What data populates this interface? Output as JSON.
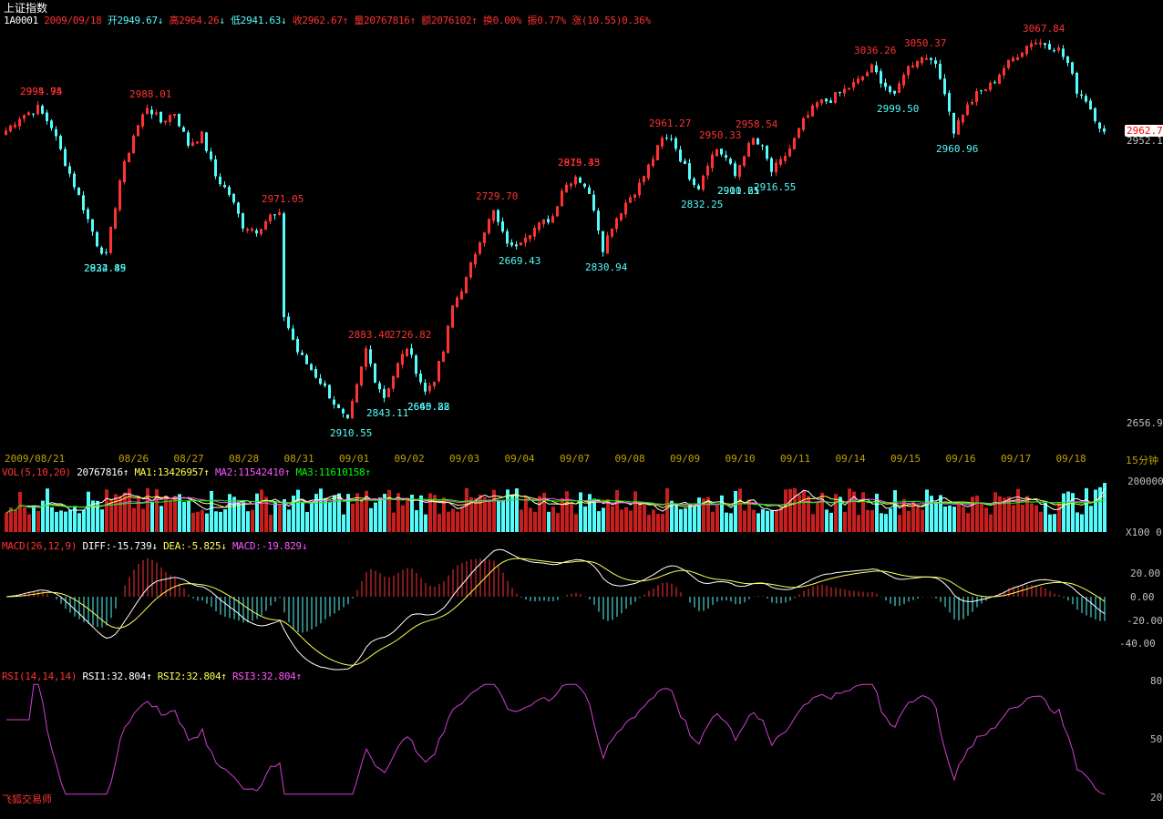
{
  "header": {
    "title": "上证指数",
    "code": "1A0001",
    "date": "2009/09/18",
    "open": "开2949.67",
    "high": "高2964.26",
    "low": "低2941.63",
    "close": "收2962.67",
    "volume": "量20767816",
    "amount": "额2076102",
    "turnover": "换0.00%",
    "amplitude": "振0.77%",
    "change": "涨(10.55)0.36%"
  },
  "price_panel": {
    "axis_top": "2962.7",
    "axis_cur": "2952.1",
    "axis_bottom": "2656.9",
    "peaks": [
      {
        "label": "2994.95"
      },
      {
        "label": "2995.74"
      },
      {
        "label": "2988.01"
      },
      {
        "label": "2971.05"
      },
      {
        "label": "2883.40"
      },
      {
        "label": "2726.82"
      },
      {
        "label": "2729.70"
      },
      {
        "label": "2875.43"
      },
      {
        "label": "2919.35"
      },
      {
        "label": "2961.27"
      },
      {
        "label": "2950.33"
      },
      {
        "label": "2958.54"
      },
      {
        "label": "3036.26"
      },
      {
        "label": "3050.37"
      },
      {
        "label": "3067.84"
      }
    ],
    "troughs": [
      {
        "label": "2824.45"
      },
      {
        "label": "2932.89"
      },
      {
        "label": "2910.55"
      },
      {
        "label": "2843.11"
      },
      {
        "label": "2640.22"
      },
      {
        "label": "2665.88"
      },
      {
        "label": "2669.43"
      },
      {
        "label": "2830.94"
      },
      {
        "label": "2832.25"
      },
      {
        "label": "2900.65"
      },
      {
        "label": "2911.21"
      },
      {
        "label": "2916.55"
      },
      {
        "label": "2999.50"
      },
      {
        "label": "2960.96"
      }
    ]
  },
  "date_axis": {
    "labels": [
      "2009/08/21",
      "08/26",
      "08/27",
      "08/28",
      "08/31",
      "09/01",
      "09/02",
      "09/03",
      "09/04",
      "09/07",
      "09/08",
      "09/09",
      "09/10",
      "09/11",
      "09/14",
      "09/15",
      "09/16",
      "09/17",
      "09/18"
    ],
    "period": "15分钟"
  },
  "vol_panel": {
    "name": "VOL(5,10,20)",
    "value": "20767816↑",
    "ma1": "MA1:13426957↑",
    "ma2": "MA2:11542410↑",
    "ma3": "MA3:11610158↑",
    "axis_top": "200000",
    "axis_bottom": "0",
    "unit": "X100"
  },
  "macd_panel": {
    "name": "MACD(26,12,9)",
    "diff": "DIFF:-15.739↓",
    "dea": "DEA:-5.825↓",
    "macd": "MACD:-19.829↓",
    "axis": [
      "20.00",
      "0.00",
      "-20.00",
      "-40.00"
    ]
  },
  "rsi_panel": {
    "name": "RSI(14,14,14)",
    "rsi1": "RSI1:32.804↑",
    "rsi2": "RSI2:32.804↑",
    "rsi3": "RSI3:32.804↑",
    "axis": [
      "80",
      "50",
      "20"
    ]
  },
  "brand": "飞狐交易师",
  "colors": {
    "up": "#ff3232",
    "down": "#54fcfc",
    "ma_white": "#ffffff",
    "ma_yellow": "#ffff54",
    "ma_magenta": "#ff54ff",
    "ma_green": "#00ff00",
    "rsi_line": "#d040d0"
  },
  "chart_data": {
    "type": "candlestick",
    "interval": "15分钟",
    "price_range": [
      2620,
      3080
    ],
    "close_anchors": [
      [
        0,
        2965
      ],
      [
        3,
        2980
      ],
      [
        7,
        2990
      ],
      [
        10,
        2970
      ],
      [
        13,
        2930
      ],
      [
        17,
        2880
      ],
      [
        20,
        2840
      ],
      [
        22,
        2826
      ],
      [
        25,
        2910
      ],
      [
        28,
        2960
      ],
      [
        31,
        2992
      ],
      [
        34,
        2975
      ],
      [
        37,
        2985
      ],
      [
        40,
        2950
      ],
      [
        43,
        2960
      ],
      [
        46,
        2915
      ],
      [
        49,
        2895
      ],
      [
        52,
        2860
      ],
      [
        55,
        2855
      ],
      [
        58,
        2870
      ],
      [
        60,
        2870
      ],
      [
        61,
        2760
      ],
      [
        64,
        2720
      ],
      [
        67,
        2700
      ],
      [
        70,
        2680
      ],
      [
        73,
        2655
      ],
      [
        75,
        2642
      ],
      [
        77,
        2680
      ],
      [
        79,
        2722
      ],
      [
        81,
        2690
      ],
      [
        83,
        2670
      ],
      [
        86,
        2705
      ],
      [
        88,
        2725
      ],
      [
        90,
        2700
      ],
      [
        92,
        2675
      ],
      [
        94,
        2690
      ],
      [
        96,
        2720
      ],
      [
        98,
        2770
      ],
      [
        101,
        2800
      ],
      [
        104,
        2845
      ],
      [
        107,
        2875
      ],
      [
        109,
        2850
      ],
      [
        111,
        2835
      ],
      [
        114,
        2850
      ],
      [
        117,
        2860
      ],
      [
        120,
        2870
      ],
      [
        122,
        2900
      ],
      [
        125,
        2915
      ],
      [
        127,
        2905
      ],
      [
        129,
        2880
      ],
      [
        131,
        2835
      ],
      [
        133,
        2860
      ],
      [
        136,
        2885
      ],
      [
        139,
        2905
      ],
      [
        141,
        2925
      ],
      [
        144,
        2955
      ],
      [
        146,
        2958
      ],
      [
        148,
        2935
      ],
      [
        150,
        2915
      ],
      [
        152,
        2903
      ],
      [
        154,
        2930
      ],
      [
        156,
        2945
      ],
      [
        158,
        2935
      ],
      [
        160,
        2915
      ],
      [
        162,
        2940
      ],
      [
        164,
        2955
      ],
      [
        166,
        2945
      ],
      [
        168,
        2920
      ],
      [
        170,
        2930
      ],
      [
        172,
        2945
      ],
      [
        175,
        2975
      ],
      [
        178,
        2995
      ],
      [
        181,
        3000
      ],
      [
        184,
        3010
      ],
      [
        187,
        3020
      ],
      [
        190,
        3035
      ],
      [
        193,
        3015
      ],
      [
        195,
        3002
      ],
      [
        197,
        3030
      ],
      [
        200,
        3045
      ],
      [
        203,
        3048
      ],
      [
        206,
        3010
      ],
      [
        208,
        2965
      ],
      [
        210,
        2985
      ],
      [
        213,
        3005
      ],
      [
        216,
        3015
      ],
      [
        219,
        3035
      ],
      [
        222,
        3050
      ],
      [
        225,
        3064
      ],
      [
        228,
        3062
      ],
      [
        231,
        3055
      ],
      [
        233,
        3040
      ],
      [
        235,
        3010
      ],
      [
        237,
        3000
      ],
      [
        239,
        2980
      ],
      [
        241,
        2962
      ]
    ]
  }
}
